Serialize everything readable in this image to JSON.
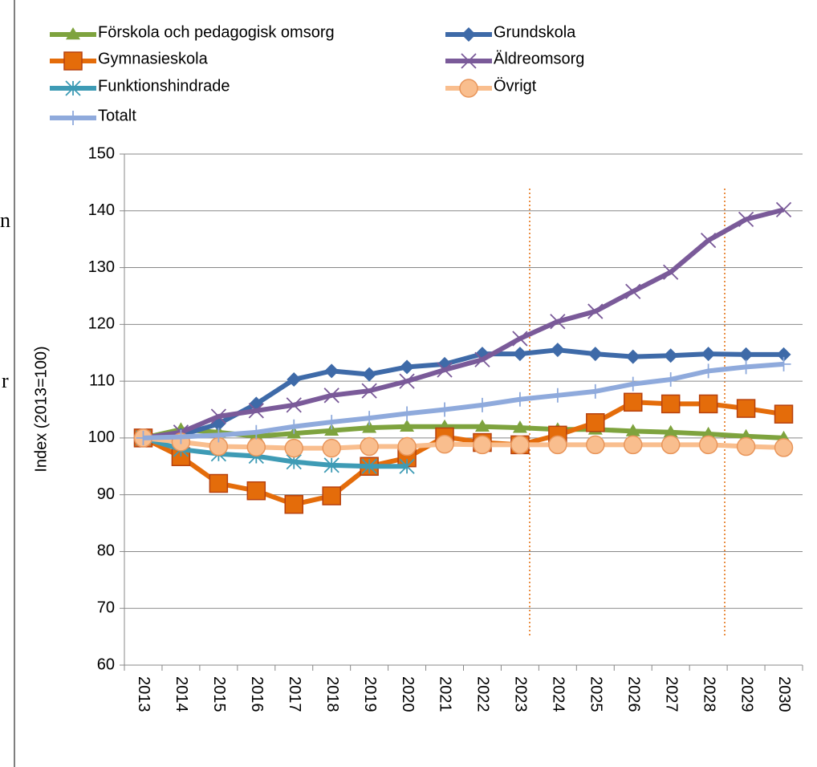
{
  "chart_data": {
    "type": "line",
    "y_label": "Index (2013=100)",
    "side_fragments": [
      "n",
      "r"
    ],
    "categories": [
      "2013",
      "2014",
      "2015",
      "2016",
      "2017",
      "2018",
      "2019",
      "2020",
      "2021",
      "2022",
      "2023",
      "2024",
      "2025",
      "2026",
      "2027",
      "2028",
      "2029",
      "2030"
    ],
    "ylim": [
      60,
      150
    ],
    "yticks": [
      60,
      70,
      80,
      90,
      100,
      110,
      120,
      130,
      140,
      150
    ],
    "grid": true,
    "series": [
      {
        "name": "Förskola och pedagogisk omsorg",
        "color": "#7ea33e",
        "marker": "triangle",
        "values": [
          100,
          101.5,
          101,
          100.3,
          100.8,
          101.3,
          101.8,
          102,
          102,
          102,
          101.8,
          101.5,
          101.5,
          101.2,
          101,
          100.7,
          100.3,
          100
        ]
      },
      {
        "name": "Grundskola",
        "color": "#3e6aa8",
        "marker": "diamond",
        "values": [
          100,
          100.5,
          102.5,
          106,
          110.3,
          111.8,
          111.2,
          112.5,
          113,
          114.8,
          114.8,
          115.5,
          114.8,
          114.3,
          114.5,
          114.8,
          114.7,
          114.7
        ]
      },
      {
        "name": "Gymnasieskola",
        "color": "#e46c0a",
        "marker": "square",
        "values": [
          100,
          96.7,
          92,
          90.7,
          88.3,
          89.8,
          95,
          96.5,
          100.2,
          99.2,
          98.8,
          100.5,
          102.7,
          106.3,
          106,
          106,
          105.2,
          104.2
        ]
      },
      {
        "name": "Äldreomsorg",
        "color": "#7a5a99",
        "marker": "x",
        "values": [
          100,
          101,
          103.8,
          104.8,
          105.8,
          107.5,
          108.3,
          110,
          112,
          113.8,
          117.5,
          120.5,
          122.3,
          125.8,
          129.2,
          134.8,
          138.5,
          140.2
        ]
      },
      {
        "name": "Funktionshindrade",
        "color": "#3e9bb5",
        "marker": "star",
        "values": [
          100,
          98,
          97.2,
          96.8,
          95.8,
          95.2,
          95,
          95,
          null,
          null,
          null,
          null,
          null,
          null,
          null,
          null,
          null,
          null
        ]
      },
      {
        "name": "Övrigt",
        "color": "#f9be8e",
        "marker": "circle",
        "values": [
          100,
          99.3,
          98.5,
          98.4,
          98.2,
          98.2,
          98.5,
          98.5,
          98.9,
          98.8,
          98.8,
          98.8,
          98.8,
          98.8,
          98.8,
          98.8,
          98.5,
          98.3
        ]
      },
      {
        "name": "Totalt",
        "color": "#8faadc",
        "marker": "plus",
        "values": [
          100,
          100.2,
          100.5,
          101,
          102,
          102.8,
          103.5,
          104.3,
          105,
          105.8,
          106.8,
          107.5,
          108.2,
          109.5,
          110.3,
          111.8,
          112.5,
          113
        ]
      }
    ]
  }
}
